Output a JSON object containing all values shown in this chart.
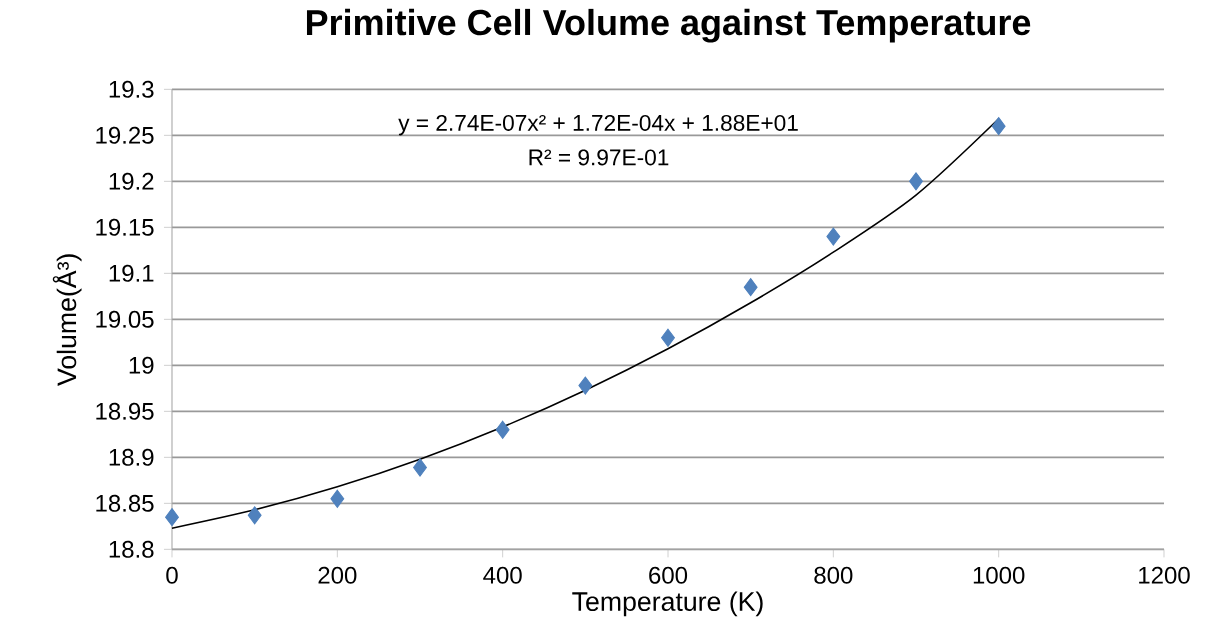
{
  "chart_data": {
    "type": "scatter",
    "title": "Primitive Cell Volume against Temperature",
    "xlabel": "Temperature (K)",
    "ylabel": "Volume(Å³)",
    "annotations": [
      "y = 2.74E-07x² + 1.72E-04x + 1.88E+01",
      "R² = 9.97E-01"
    ],
    "series": [
      {
        "color": "#4f81bd",
        "marker": "diamond",
        "x": [
          0,
          100,
          200,
          300,
          400,
          500,
          600,
          700,
          800,
          900,
          1000
        ],
        "values": [
          18.835,
          18.837,
          18.855,
          18.889,
          18.93,
          18.978,
          19.03,
          19.085,
          19.14,
          19.2,
          19.26
        ]
      },
      {
        "type": "line",
        "color": "#000000",
        "marker": "none",
        "x": [
          0,
          100,
          200,
          300,
          400,
          500,
          600,
          700,
          800,
          900,
          1000
        ],
        "values": [
          18.823,
          18.843,
          18.868,
          18.898,
          18.933,
          18.973,
          19.018,
          19.068,
          19.123,
          19.185,
          19.268
        ]
      }
    ],
    "xlim": [
      0,
      1200
    ],
    "xticks": [
      0,
      200,
      400,
      600,
      800,
      1000,
      1200
    ],
    "ylim": [
      18.8,
      19.3
    ],
    "yticks": [
      18.8,
      18.85,
      18.9,
      18.95,
      19,
      19.05,
      19.1,
      19.15,
      19.2,
      19.25,
      19.3
    ],
    "grid": "y"
  }
}
